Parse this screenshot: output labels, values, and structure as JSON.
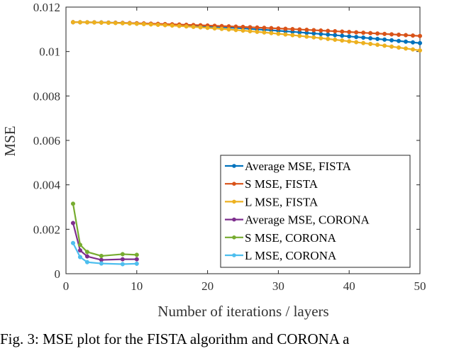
{
  "chart_data": {
    "type": "line",
    "title": "",
    "xlabel": "Number of iterations / layers",
    "ylabel": "MSE",
    "xlim": [
      0,
      50
    ],
    "ylim": [
      0,
      0.012
    ],
    "xticks": [
      0,
      10,
      20,
      30,
      40,
      50
    ],
    "xtick_labels": [
      "0",
      "10",
      "20",
      "30",
      "40",
      "50"
    ],
    "yticks": [
      0,
      0.002,
      0.004,
      0.006,
      0.008,
      0.01,
      0.012
    ],
    "ytick_labels": [
      "0",
      "0.002",
      "0.004",
      "0.006",
      "0.008",
      "0.01",
      "0.012"
    ],
    "grid": false,
    "legend_position": "lower-right",
    "series": [
      {
        "name": "Average MSE, FISTA",
        "color": "#0072BD",
        "x_start": 1,
        "x_end": 50,
        "y_start": 0.01132,
        "y_end": 0.01038,
        "shape": 1.7
      },
      {
        "name": "S MSE, FISTA",
        "color": "#D95319",
        "x_start": 1,
        "x_end": 50,
        "y_start": 0.01132,
        "y_end": 0.0107,
        "shape": 1.5
      },
      {
        "name": "L MSE, FISTA",
        "color": "#EDB120",
        "x_start": 1,
        "x_end": 50,
        "y_start": 0.01132,
        "y_end": 0.01005,
        "shape": 1.7
      },
      {
        "name": "Average MSE, CORONA",
        "color": "#7E2F8E",
        "x": [
          1,
          2,
          3,
          5,
          8,
          10
        ],
        "y": [
          0.00228,
          0.00105,
          0.00078,
          0.00062,
          0.00065,
          0.00065
        ]
      },
      {
        "name": "S MSE, CORONA",
        "color": "#77AC30",
        "x": [
          1,
          2,
          3,
          5,
          8,
          10
        ],
        "y": [
          0.00315,
          0.0013,
          0.00098,
          0.0008,
          0.00088,
          0.00085
        ]
      },
      {
        "name": "L MSE, CORONA",
        "color": "#4DBEEE",
        "x": [
          1,
          2,
          3,
          5,
          8,
          10
        ],
        "y": [
          0.00138,
          0.00075,
          0.00052,
          0.00046,
          0.00043,
          0.00045
        ]
      }
    ]
  },
  "caption": "Fig. 3: MSE plot for the FISTA algorithm and CORONA a"
}
